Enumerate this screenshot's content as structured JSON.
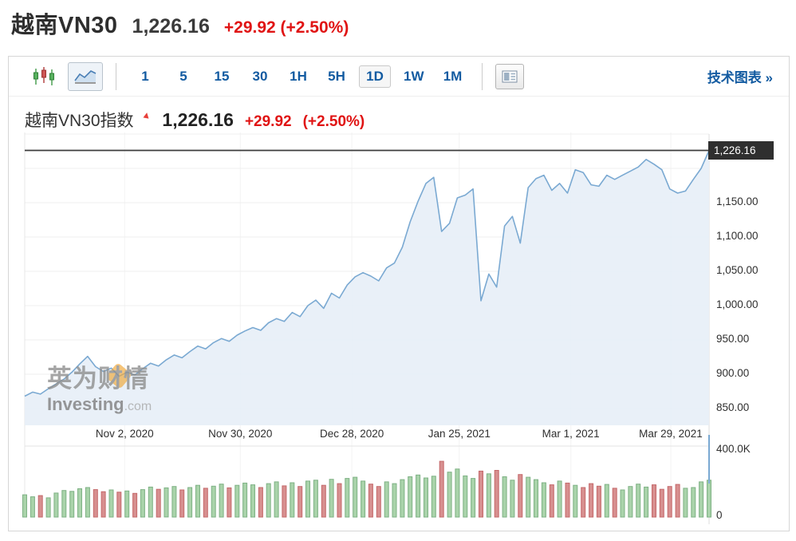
{
  "header": {
    "symbol": "越南VN30",
    "price": "1,226.16",
    "change": "+29.92 (+2.50%)"
  },
  "toolbar": {
    "chart_types": [
      {
        "name": "candlestick",
        "selected": false
      },
      {
        "name": "area",
        "selected": true
      }
    ],
    "intervals": [
      {
        "label": "1",
        "selected": false
      },
      {
        "label": "5",
        "selected": false
      },
      {
        "label": "15",
        "selected": false
      },
      {
        "label": "30",
        "selected": false
      },
      {
        "label": "1H",
        "selected": false
      },
      {
        "label": "5H",
        "selected": false
      },
      {
        "label": "1D",
        "selected": true
      },
      {
        "label": "1W",
        "selected": false
      },
      {
        "label": "1M",
        "selected": false
      }
    ],
    "tech_link": "技术图表 »"
  },
  "chart_header": {
    "title": "越南VN30指数",
    "price": "1,226.16",
    "change": "+29.92",
    "change_pct": "(+2.50%)"
  },
  "watermark": {
    "cn": "英为财情",
    "brand": "Investing",
    "tld": ".com"
  },
  "chart_data": {
    "type": "area",
    "title": "越南VN30指数",
    "last_price": 1226.16,
    "price_badge": "1,226.16",
    "ylim": [
      850,
      1250
    ],
    "grid_values": [
      1250,
      1200,
      1150,
      1100,
      1050,
      1000,
      950,
      900,
      850
    ],
    "y_ticks": [
      {
        "value": 1150,
        "label": "1,150.00"
      },
      {
        "value": 1100,
        "label": "1,100.00"
      },
      {
        "value": 1050,
        "label": "1,050.00"
      },
      {
        "value": 1000,
        "label": "1,000.00"
      },
      {
        "value": 950,
        "label": "950.00"
      },
      {
        "value": 900,
        "label": "900.00"
      },
      {
        "value": 850,
        "label": "850.00"
      }
    ],
    "x_ticks": [
      {
        "label": "Nov 2, 2020",
        "pos": 0.146
      },
      {
        "label": "Nov 30, 2020",
        "pos": 0.315
      },
      {
        "label": "Dec 28, 2020",
        "pos": 0.478
      },
      {
        "label": "Jan 25, 2021",
        "pos": 0.635
      },
      {
        "label": "Mar 1, 2021",
        "pos": 0.798
      },
      {
        "label": "Mar 29, 2021",
        "pos": 0.944
      }
    ],
    "volume_axis": {
      "max_value_k": 400,
      "max_label": "400.0K",
      "zero_label": "0"
    },
    "prices": [
      868,
      874,
      871,
      879,
      886,
      893,
      903,
      915,
      926,
      911,
      904,
      909,
      897,
      903,
      899,
      908,
      916,
      912,
      921,
      928,
      924,
      933,
      941,
      937,
      946,
      952,
      948,
      957,
      963,
      968,
      964,
      975,
      981,
      977,
      990,
      984,
      1000,
      1008,
      996,
      1018,
      1011,
      1030,
      1042,
      1048,
      1043,
      1036,
      1055,
      1062,
      1085,
      1122,
      1152,
      1178,
      1187,
      1108,
      1120,
      1157,
      1161,
      1170,
      1007,
      1046,
      1027,
      1116,
      1130,
      1091,
      1172,
      1185,
      1190,
      1168,
      1178,
      1164,
      1198,
      1194,
      1176,
      1174,
      1190,
      1184,
      1190,
      1196,
      1202,
      1213,
      1206,
      1198,
      1170,
      1164,
      1167,
      1184,
      1200,
      1226.16
    ],
    "volumes_k": [
      130,
      118,
      125,
      112,
      140,
      155,
      150,
      165,
      172,
      160,
      148,
      158,
      145,
      152,
      138,
      160,
      175,
      162,
      170,
      178,
      158,
      172,
      185,
      168,
      180,
      192,
      170,
      185,
      198,
      188,
      172,
      195,
      205,
      182,
      200,
      178,
      210,
      215,
      185,
      220,
      195,
      225,
      232,
      210,
      192,
      178,
      205,
      195,
      218,
      235,
      245,
      228,
      238,
      325,
      262,
      280,
      240,
      225,
      268,
      252,
      272,
      235,
      215,
      248,
      232,
      218,
      200,
      188,
      210,
      198,
      185,
      172,
      195,
      180,
      190,
      168,
      158,
      178,
      192,
      175,
      188,
      162,
      178,
      190,
      168,
      172,
      205,
      215
    ],
    "colors": {
      "line": "#7aa9d2",
      "fill": "#e7eff7",
      "vol_up": "#a9d3aa",
      "vol_up_border": "#7eb184",
      "vol_down": "#d78f8f",
      "vol_down_border": "#c4686a",
      "price_line": "#3c3c3c",
      "badge_bg": "#2f2f2f",
      "accent_red": "#e01414",
      "link_blue": "#135ba1",
      "grid": "#efefef"
    }
  }
}
